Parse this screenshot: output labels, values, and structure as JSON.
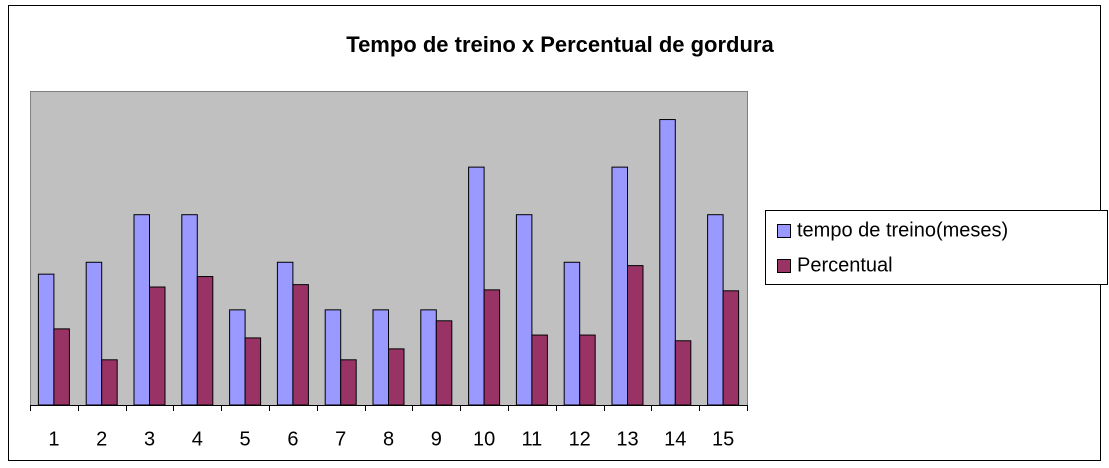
{
  "chart_data": {
    "type": "bar",
    "title": "Tempo de treino x Percentual de gordura",
    "categories": [
      "1",
      "2",
      "3",
      "4",
      "5",
      "6",
      "7",
      "8",
      "9",
      "10",
      "11",
      "12",
      "13",
      "14",
      "15"
    ],
    "series": [
      {
        "name": "tempo de treino(meses)",
        "color": "#9999ff",
        "values": [
          2.75,
          3,
          4,
          4,
          2,
          3,
          2,
          2,
          2,
          5,
          4,
          3,
          5,
          6,
          4
        ]
      },
      {
        "name": "Percentual",
        "color": "#993366",
        "values": [
          1.6,
          0.95,
          2.48,
          2.7,
          1.41,
          2.53,
          0.95,
          1.18,
          1.77,
          2.42,
          1.47,
          1.47,
          2.93,
          1.35,
          2.4
        ]
      }
    ],
    "ylim": [
      0,
      6.6
    ],
    "legend": "right",
    "plot_background": "#c0c0c0"
  }
}
